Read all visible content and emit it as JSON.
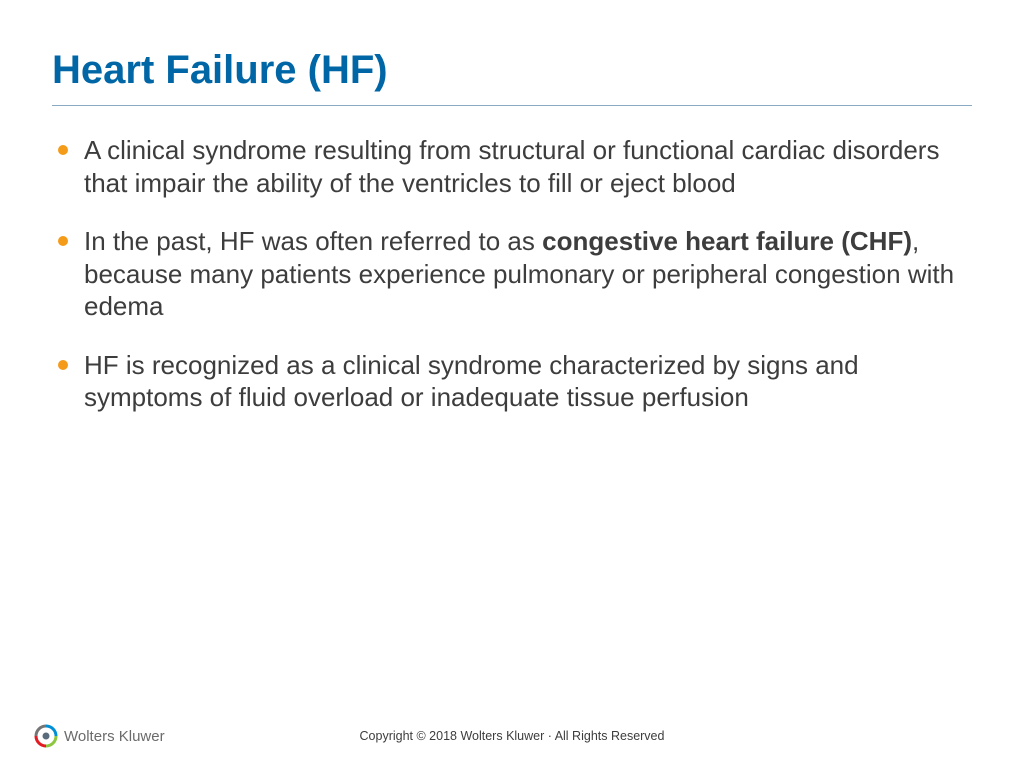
{
  "title": "Heart Failure (HF)",
  "title_color": "#0066a6",
  "divider_color": "#8aa9c2",
  "bullet_color": "#f49b1a",
  "body_text_color": "#3d3d3d",
  "title_fontsize": 40,
  "body_fontsize": 26,
  "bullets": [
    {
      "segments": [
        {
          "text": "A clinical syndrome resulting from structural or functional cardiac disorders that impair the ability of the ventricles to fill or eject blood",
          "bold": false
        }
      ]
    },
    {
      "segments": [
        {
          "text": "In the past, HF was often referred to as ",
          "bold": false
        },
        {
          "text": "congestive heart failure (CHF)",
          "bold": true
        },
        {
          "text": ", because many patients experience pulmonary or peripheral congestion with edema",
          "bold": false
        }
      ]
    },
    {
      "segments": [
        {
          "text": "HF is recognized as a clinical syndrome characterized by signs and symptoms of fluid overload or inadequate tissue perfusion",
          "bold": false
        }
      ]
    }
  ],
  "footer": {
    "logo_text": "Wolters Kluwer",
    "copyright": "Copyright © 2018 Wolters Kluwer · All Rights Reserved"
  },
  "logo_colors": {
    "arc1": "#008fd5",
    "arc2": "#8dc63f",
    "arc3": "#e31b23",
    "arc4": "#757575"
  }
}
